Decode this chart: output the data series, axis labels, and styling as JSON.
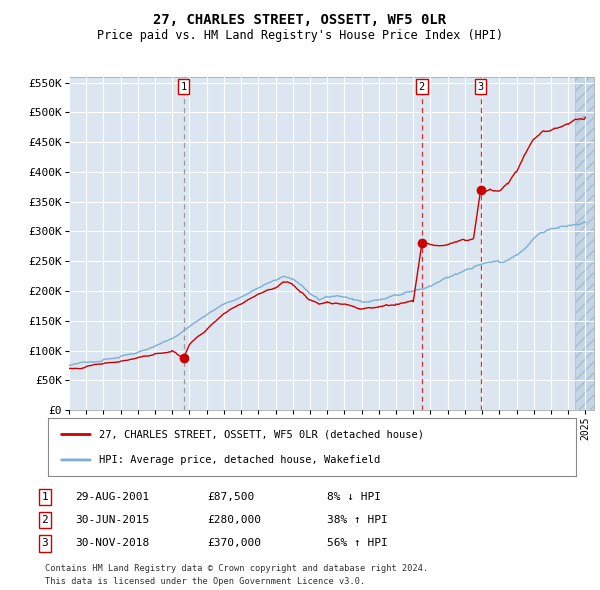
{
  "title": "27, CHARLES STREET, OSSETT, WF5 0LR",
  "subtitle": "Price paid vs. HM Land Registry's House Price Index (HPI)",
  "ylim": [
    0,
    560000
  ],
  "yticks": [
    0,
    50000,
    100000,
    150000,
    200000,
    250000,
    300000,
    350000,
    400000,
    450000,
    500000,
    550000
  ],
  "ytick_labels": [
    "£0",
    "£50K",
    "£100K",
    "£150K",
    "£200K",
    "£250K",
    "£300K",
    "£350K",
    "£400K",
    "£450K",
    "£500K",
    "£550K"
  ],
  "xlim_start": 1995.0,
  "xlim_end": 2025.5,
  "xticks": [
    1995,
    1996,
    1997,
    1998,
    1999,
    2000,
    2001,
    2002,
    2003,
    2004,
    2005,
    2006,
    2007,
    2008,
    2009,
    2010,
    2011,
    2012,
    2013,
    2014,
    2015,
    2016,
    2017,
    2018,
    2019,
    2020,
    2021,
    2022,
    2023,
    2024,
    2025
  ],
  "background_color": "#dce6f1",
  "hpi_line_color": "#7bafd4",
  "price_line_color": "#cc0000",
  "vline_color_1": "#888888",
  "vline_color_23": "#cc0000",
  "label_1": "27, CHARLES STREET, OSSETT, WF5 0LR (detached house)",
  "label_2": "HPI: Average price, detached house, Wakefield",
  "transactions": [
    {
      "id": 1,
      "date_str": "29-AUG-2001",
      "year": 2001.66,
      "price": 87500,
      "pct": "8%",
      "dir": "↓"
    },
    {
      "id": 2,
      "date_str": "30-JUN-2015",
      "year": 2015.5,
      "price": 280000,
      "pct": "38%",
      "dir": "↑"
    },
    {
      "id": 3,
      "date_str": "30-NOV-2018",
      "year": 2018.92,
      "price": 370000,
      "pct": "56%",
      "dir": "↑"
    }
  ],
  "hpi_keypoints": [
    [
      1995.0,
      75000
    ],
    [
      1996.0,
      80000
    ],
    [
      1997.0,
      85000
    ],
    [
      1998.0,
      90000
    ],
    [
      1999.0,
      97000
    ],
    [
      2000.0,
      108000
    ],
    [
      2001.0,
      120000
    ],
    [
      2002.0,
      140000
    ],
    [
      2003.0,
      160000
    ],
    [
      2004.0,
      178000
    ],
    [
      2005.0,
      190000
    ],
    [
      2006.0,
      205000
    ],
    [
      2007.0,
      218000
    ],
    [
      2007.5,
      225000
    ],
    [
      2008.0,
      220000
    ],
    [
      2008.5,
      210000
    ],
    [
      2009.0,
      195000
    ],
    [
      2009.5,
      185000
    ],
    [
      2010.0,
      190000
    ],
    [
      2010.5,
      192000
    ],
    [
      2011.0,
      190000
    ],
    [
      2011.5,
      185000
    ],
    [
      2012.0,
      182000
    ],
    [
      2012.5,
      183000
    ],
    [
      2013.0,
      185000
    ],
    [
      2013.5,
      188000
    ],
    [
      2014.0,
      193000
    ],
    [
      2014.5,
      198000
    ],
    [
      2015.0,
      200000
    ],
    [
      2015.5,
      203000
    ],
    [
      2016.0,
      208000
    ],
    [
      2016.5,
      215000
    ],
    [
      2017.0,
      222000
    ],
    [
      2017.5,
      228000
    ],
    [
      2018.0,
      235000
    ],
    [
      2018.5,
      240000
    ],
    [
      2019.0,
      245000
    ],
    [
      2019.5,
      248000
    ],
    [
      2020.0,
      248000
    ],
    [
      2020.5,
      252000
    ],
    [
      2021.0,
      260000
    ],
    [
      2021.5,
      272000
    ],
    [
      2022.0,
      288000
    ],
    [
      2022.5,
      298000
    ],
    [
      2023.0,
      305000
    ],
    [
      2023.5,
      308000
    ],
    [
      2024.0,
      310000
    ],
    [
      2024.5,
      312000
    ],
    [
      2025.0,
      315000
    ]
  ],
  "price_keypoints": [
    [
      1995.0,
      70000
    ],
    [
      1996.0,
      73000
    ],
    [
      1997.0,
      78000
    ],
    [
      1998.0,
      82000
    ],
    [
      1999.0,
      88000
    ],
    [
      2000.0,
      95000
    ],
    [
      2001.0,
      100000
    ],
    [
      2001.66,
      87500
    ],
    [
      2002.0,
      110000
    ],
    [
      2003.0,
      135000
    ],
    [
      2004.0,
      162000
    ],
    [
      2005.0,
      178000
    ],
    [
      2006.0,
      195000
    ],
    [
      2007.0,
      205000
    ],
    [
      2007.5,
      215000
    ],
    [
      2008.0,
      210000
    ],
    [
      2008.5,
      198000
    ],
    [
      2009.0,
      185000
    ],
    [
      2009.5,
      178000
    ],
    [
      2010.0,
      182000
    ],
    [
      2010.5,
      180000
    ],
    [
      2011.0,
      178000
    ],
    [
      2011.5,
      174000
    ],
    [
      2012.0,
      170000
    ],
    [
      2012.5,
      172000
    ],
    [
      2013.0,
      174000
    ],
    [
      2013.5,
      176000
    ],
    [
      2014.0,
      178000
    ],
    [
      2014.5,
      180000
    ],
    [
      2015.0,
      182000
    ],
    [
      2015.5,
      280000
    ],
    [
      2016.0,
      278000
    ],
    [
      2016.5,
      276000
    ],
    [
      2017.0,
      278000
    ],
    [
      2017.5,
      282000
    ],
    [
      2018.0,
      285000
    ],
    [
      2018.5,
      288000
    ],
    [
      2018.92,
      370000
    ],
    [
      2019.0,
      365000
    ],
    [
      2019.5,
      370000
    ],
    [
      2020.0,
      368000
    ],
    [
      2020.5,
      380000
    ],
    [
      2021.0,
      400000
    ],
    [
      2021.5,
      430000
    ],
    [
      2022.0,
      455000
    ],
    [
      2022.5,
      468000
    ],
    [
      2023.0,
      470000
    ],
    [
      2023.5,
      475000
    ],
    [
      2024.0,
      480000
    ],
    [
      2024.5,
      488000
    ],
    [
      2025.0,
      492000
    ]
  ],
  "footnote_1": "Contains HM Land Registry data © Crown copyright and database right 2024.",
  "footnote_2": "This data is licensed under the Open Government Licence v3.0."
}
